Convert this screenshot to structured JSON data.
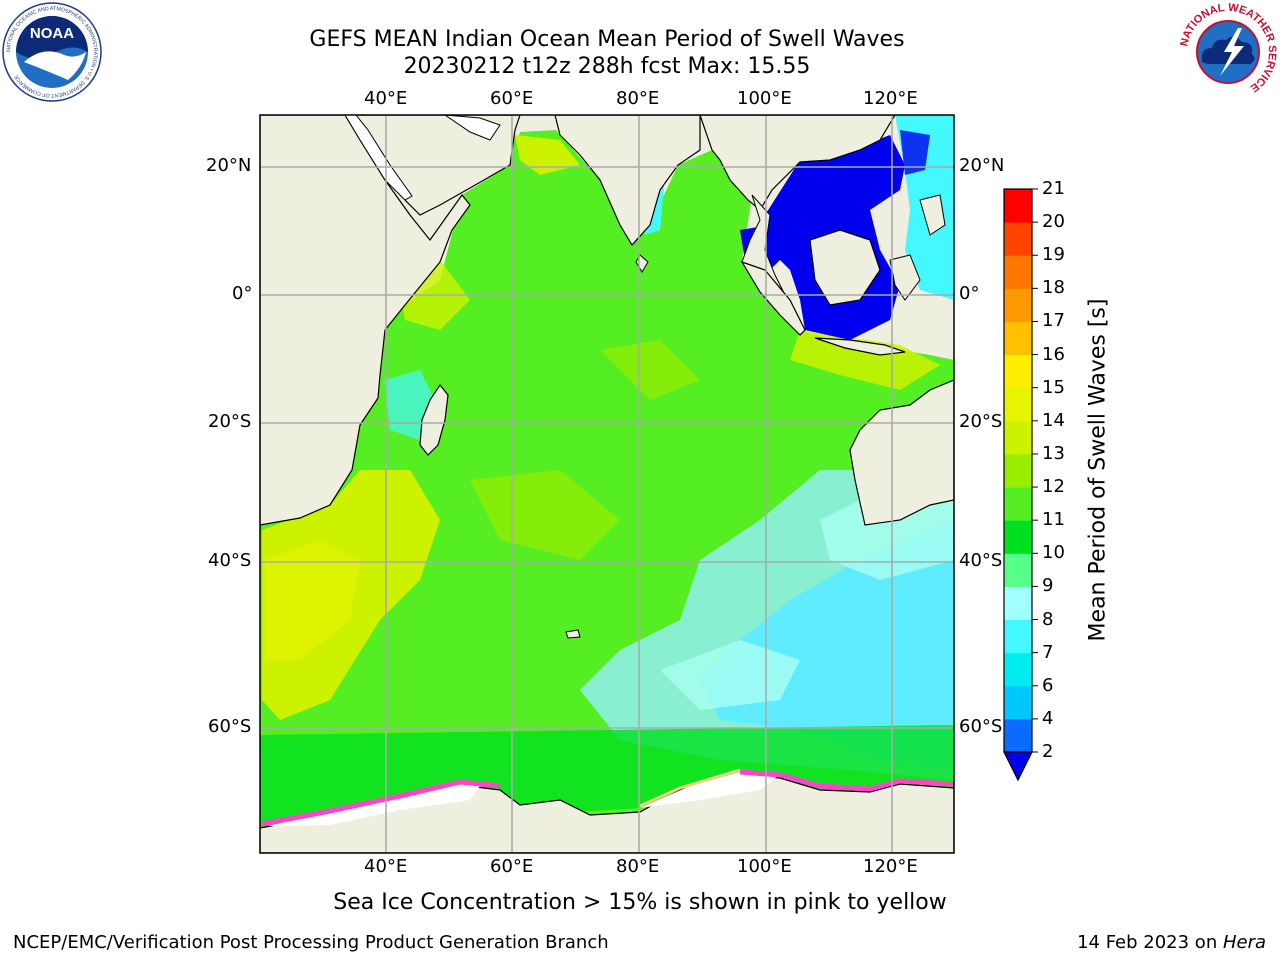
{
  "title_line1": "GEFS MEAN Indian Ocean Mean Period of Swell Waves",
  "title_line2": "20230212 t12z 288h fcst   Max: 15.55",
  "note": "Sea Ice Concentration > 15% is shown in pink to yellow",
  "footer_left": "NCEP/EMC/Verification Post Processing Product Generation Branch",
  "footer_date": "14 Feb 2023 on ",
  "footer_host": "Hera",
  "logos": {
    "noaa": {
      "text": "NOAA",
      "ring": "NATIONAL OCEANIC AND ATMOSPHERIC ADMINISTRATION • U.S. DEPARTMENT OF COMMERCE",
      "icon": "noaa-logo"
    },
    "nws": {
      "ring": "NATIONAL WEATHER SERVICE",
      "icon": "nws-logo"
    }
  },
  "map": {
    "lon_ticks": [
      "40°E",
      "60°E",
      "80°E",
      "100°E",
      "120°E"
    ],
    "lon_values": [
      40,
      60,
      80,
      100,
      120
    ],
    "lat_ticks": [
      "20°N",
      "0°",
      "20°S",
      "40°S",
      "60°S"
    ],
    "lat_values": [
      20,
      0,
      -20,
      -40,
      -60
    ],
    "land_color": "#efefdf",
    "ocean_base_color": "#55ee22"
  },
  "colorbar": {
    "label": "Mean Period of Swell Waves [s]",
    "tick_labels": [
      "2",
      "4",
      "6",
      "7",
      "8",
      "9",
      "10",
      "11",
      "12",
      "13",
      "14",
      "15",
      "16",
      "17",
      "18",
      "19",
      "20",
      "21"
    ],
    "colors": [
      "#0a6cff",
      "#00c8ff",
      "#00ecf0",
      "#44f8ff",
      "#a0ffff",
      "#55ff88",
      "#00e020",
      "#55ee22",
      "#99ee00",
      "#ccf200",
      "#e6f400",
      "#ffee00",
      "#ffc000",
      "#ff9900",
      "#ff7700",
      "#ff4400",
      "#ff0000"
    ],
    "under_color": "#0000ee"
  }
}
